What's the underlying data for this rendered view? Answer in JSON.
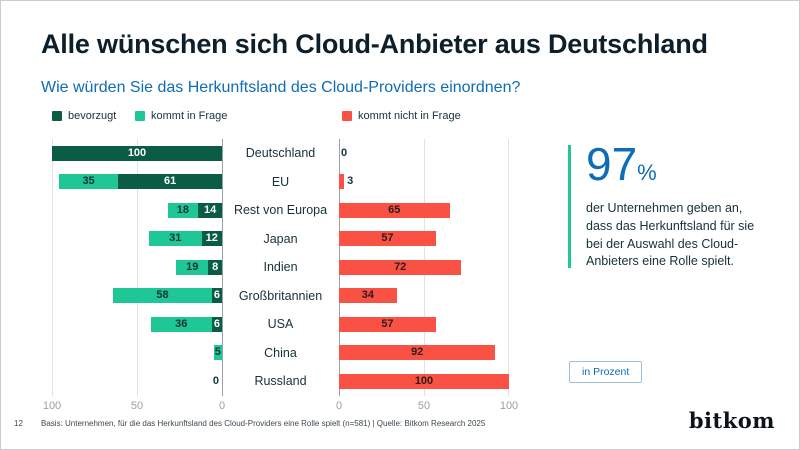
{
  "header": {
    "title": "Alle wünschen sich Cloud-Anbieter aus Deutschland",
    "subtitle": "Wie würden Sie das Herkunftsland des Cloud-Providers einordnen?"
  },
  "legend": [
    {
      "label": "bevorzugt",
      "color": "#0b5c45"
    },
    {
      "label": "kommt in Frage",
      "color": "#1ec795"
    },
    {
      "label": "kommt nicht in Frage",
      "color": "#f95144"
    }
  ],
  "chart_data": {
    "type": "bar",
    "variant": "diverging-stacked-horizontal",
    "unit": "percent",
    "categories": [
      "Deutschland",
      "EU",
      "Rest von Europa",
      "Japan",
      "Indien",
      "Großbritannien",
      "USA",
      "China",
      "Russland"
    ],
    "series": [
      {
        "name": "bevorzugt",
        "color": "#0b5c45",
        "values": [
          100,
          61,
          14,
          12,
          8,
          6,
          6,
          null,
          0
        ]
      },
      {
        "name": "kommt in Frage",
        "color": "#1ec795",
        "values": [
          null,
          35,
          18,
          31,
          19,
          58,
          36,
          5,
          null
        ]
      },
      {
        "name": "kommt nicht in Frage",
        "color": "#f95144",
        "values": [
          0,
          3,
          65,
          57,
          72,
          34,
          57,
          92,
          100
        ]
      }
    ],
    "left_axis_ticks": [
      100,
      50,
      0
    ],
    "right_axis_ticks": [
      0,
      50,
      100
    ],
    "xlim": [
      0,
      100
    ],
    "grid": true,
    "legend_position": "top"
  },
  "callout": {
    "value": "97",
    "unit": "%",
    "text": "der Unternehmen geben an,\ndass das Herkunftsland für sie\nbei der Auswahl des Cloud-\nAnbieters eine Rolle spielt.",
    "accent_color": "#1ec795",
    "value_color": "#0f6cb5"
  },
  "unit_badge": {
    "label": "in Prozent"
  },
  "footer": {
    "page": "12",
    "basis": "Basis: Unternehmen, für die das Herkunftsland des Cloud-Providers eine Rolle spielt (n=581) | Quelle: Bitkom Research 2025",
    "logo": "bitkom"
  }
}
